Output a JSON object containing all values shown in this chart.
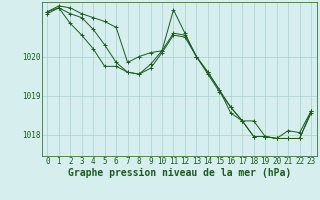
{
  "bg_color": "#d6eeee",
  "line_color": "#1a5c1a",
  "grid_color": "#a8d0d0",
  "xlabel": "Graphe pression niveau de la mer (hPa)",
  "xlabel_fontsize": 7,
  "tick_fontsize": 5.5,
  "ylim": [
    1017.45,
    1021.4
  ],
  "xlim": [
    -0.5,
    23.5
  ],
  "yticks": [
    1018,
    1019,
    1020
  ],
  "xticks": [
    0,
    1,
    2,
    3,
    4,
    5,
    6,
    7,
    8,
    9,
    10,
    11,
    12,
    13,
    14,
    15,
    16,
    17,
    18,
    19,
    20,
    21,
    22,
    23
  ],
  "series": [
    [
      1021.15,
      1021.3,
      1021.25,
      1021.1,
      1021.0,
      1020.9,
      1020.75,
      1019.85,
      1020.0,
      1020.1,
      1020.15,
      1021.2,
      1020.6,
      1020.0,
      1019.6,
      1019.15,
      1018.55,
      1018.35,
      1018.35,
      1017.95,
      1017.9,
      1017.9,
      1017.9,
      1018.55
    ],
    [
      1021.15,
      1021.25,
      1021.1,
      1021.0,
      1020.7,
      1020.3,
      1019.85,
      1019.6,
      1019.55,
      1019.8,
      1020.15,
      1020.6,
      1020.55,
      1020.0,
      1019.6,
      1019.15,
      1018.7,
      1018.35,
      1017.95,
      1017.95,
      1017.9,
      1017.9,
      1017.9,
      1018.6
    ],
    [
      1021.1,
      1021.25,
      1020.85,
      1020.55,
      1020.2,
      1019.75,
      1019.75,
      1019.6,
      1019.55,
      1019.7,
      1020.1,
      1020.55,
      1020.5,
      1020.0,
      1019.55,
      1019.1,
      1018.7,
      1018.35,
      1017.95,
      1017.95,
      1017.9,
      1018.1,
      1018.05,
      1018.6
    ]
  ]
}
